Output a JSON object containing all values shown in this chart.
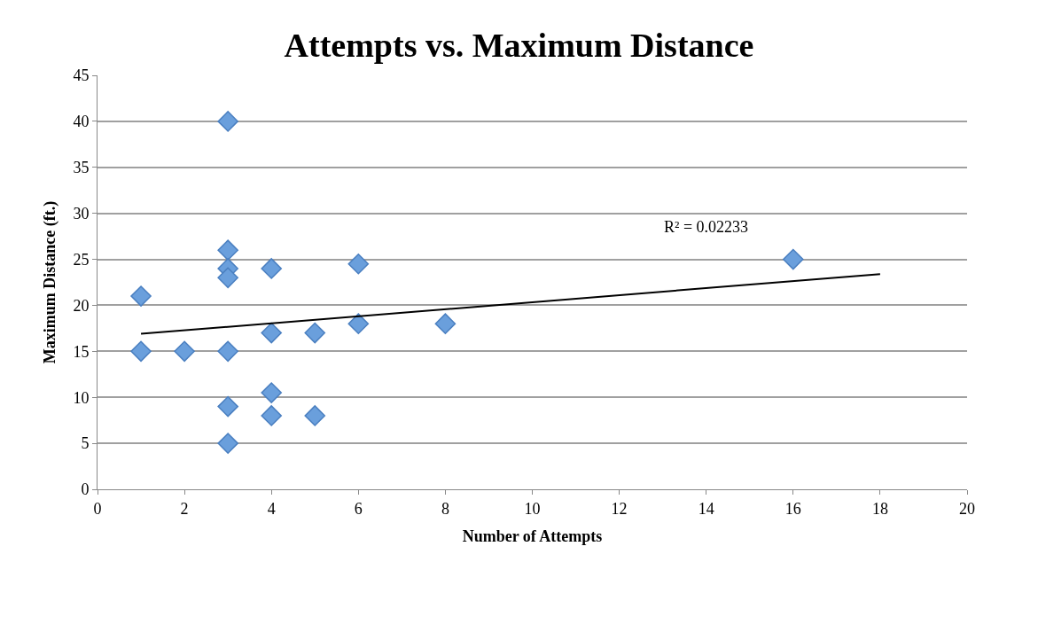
{
  "chart_data": {
    "type": "scatter",
    "title": "Attempts vs. Maximum Distance",
    "xlabel": "Number of Attempts",
    "ylabel": "Maximum Distance (ft.)",
    "series": [
      {
        "color": "#6a9fdc",
        "marker": "diamond",
        "x": [
          1,
          1,
          2,
          3,
          3,
          3,
          3,
          3,
          3,
          3,
          4,
          4,
          4,
          4,
          5,
          5,
          6,
          6,
          8,
          16
        ],
        "values": [
          21,
          15,
          15,
          40,
          26,
          24,
          23,
          15,
          9,
          5,
          24,
          17,
          10.5,
          8,
          17,
          8,
          24.5,
          18,
          18,
          25
        ]
      },
      {
        "type": "line",
        "color": "#000000",
        "marker": "none",
        "x": [
          1,
          18
        ],
        "values": [
          16.9,
          23.4
        ]
      }
    ],
    "annotations": [
      "R² = 0.02233"
    ],
    "xlim": [
      0,
      20
    ],
    "xticks": [
      0,
      2,
      4,
      6,
      8,
      10,
      12,
      14,
      16,
      18,
      20
    ],
    "ylim": [
      0,
      45
    ],
    "yticks": [
      0,
      5,
      10,
      15,
      20,
      25,
      30,
      35,
      40,
      45
    ],
    "grid": "y"
  }
}
